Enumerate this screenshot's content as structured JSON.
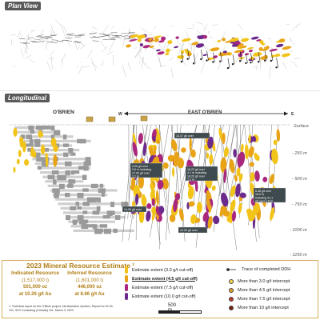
{
  "panels": {
    "plan_label": "Plan View",
    "long_label": "Longitudinal"
  },
  "longitudinal": {
    "obrien_label": "O'BRIEN",
    "east_label": "EAST O'BRIEN",
    "west_marker": "W",
    "east_marker": "E",
    "depths": [
      "Surface",
      "- 250 m",
      "- 500 m",
      "- 750 m",
      "- 1000 m",
      "- 1250 m"
    ]
  },
  "callouts": [
    {
      "text": "14.47 g/t over 1.4 m"
    },
    {
      "text": "4.00 g/t over 2.6 m including 17.00 g/t over 1.1 m"
    },
    {
      "text": "16.22 g/t over 4.1 m including 18.20 g/t over 1.2 m"
    },
    {
      "text": "6.36 g/t over 15.0 m including 41.1 g/t over 1.5 m"
    },
    {
      "text": "14.00 g/t over 1.0 m"
    },
    {
      "text": "10.00 g/t over 1.0 m"
    }
  ],
  "legend": {
    "title": "2023 Mineral Resource Estimate ¹",
    "indicated": {
      "heading": "Indicated Resource",
      "tonnes": "(1,517,000 t)",
      "ounces": "501,000 oz",
      "grade": "at 10.26 g/t Au"
    },
    "inferred": {
      "heading": "Inferred Resource",
      "tonnes": "(1,601,000 t)",
      "ounces": "446,000 oz",
      "grade": "at 8.66 g/t Au"
    },
    "footnote": "1. Technical report on the O'Brien project, Northwestern Quebec, Report for NI 43-101, SLR Consulting (Canada) Ltd., March 3, 2023",
    "extents": [
      {
        "label": "Estimate extent (3.0 g/t cut-off)",
        "color": "#f2c318",
        "bold": false
      },
      {
        "label": "Estimate extent (4.5 g/t cut-off)",
        "color": "#e8a317",
        "bold": true
      },
      {
        "label": "Estimate extent (7.5 g/t cut-off)",
        "color": "#a9287e",
        "bold": false
      },
      {
        "label": "Estimate extent (10.0 g/t cut-off)",
        "color": "#6b2a8c",
        "bold": false
      }
    ],
    "trace": "Trace of completed DDH",
    "intercepts": [
      {
        "label": "More than 3.0 g/t intercept",
        "color": "#f5d74a"
      },
      {
        "label": "More than 4.5 g/t intercept",
        "color": "#e89b2a"
      },
      {
        "label": "More than 7.5 g/t intercept",
        "color": "#c0392b"
      },
      {
        "label": "More than 10 g/t intercept",
        "color": "#7a1e12"
      }
    ],
    "scale": "500 m"
  }
}
